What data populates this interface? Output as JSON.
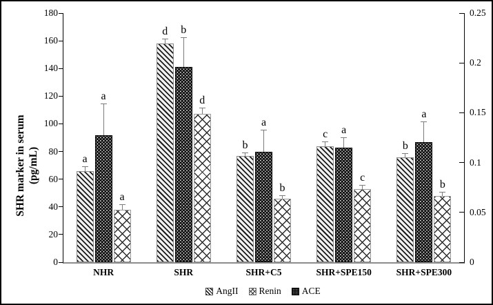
{
  "figure": {
    "background": "#ffffff",
    "border_color": "#000000",
    "axis_color": "#000000",
    "baseline_color": "#8c8c8c",
    "error_bar_color": "#7a7a7a"
  },
  "y_axis_left": {
    "title_line1": "SHR marker in serum",
    "title_line2": "(pg/mL)",
    "ticks": [
      "180",
      "160",
      "140",
      "120",
      "100",
      "80",
      "60",
      "40",
      "20",
      "0"
    ],
    "min": 0,
    "max": 180
  },
  "y_axis_right": {
    "ticks": [
      "0.25",
      "0.2",
      "0.15",
      "0.1",
      "0.05",
      "0"
    ],
    "min": 0,
    "max": 0.25
  },
  "legend": {
    "items": [
      {
        "label": "AngII",
        "pattern": "diagonal-stripes",
        "marker_class": "lm-angii"
      },
      {
        "label": "Renin",
        "pattern": "crosshatch",
        "marker_class": "lm-renin"
      },
      {
        "label": "ACE",
        "pattern": "dotted-black",
        "marker_class": "lm-ace"
      }
    ]
  },
  "chart_data": {
    "type": "bar",
    "title": "",
    "xlabel": "",
    "ylabel": "SHR marker in serum (pg/mL)",
    "ylim": [
      0,
      180
    ],
    "y2lim": [
      0,
      0.25
    ],
    "grid": false,
    "legend_position": "bottom-center",
    "categories": [
      "NHR",
      "SHR",
      "SHR+C5",
      "SHR+SPE150",
      "SHR+SPE300"
    ],
    "bar_order": [
      "AngII",
      "ACE",
      "Renin"
    ],
    "legend_order": [
      "AngII",
      "Renin",
      "ACE"
    ],
    "series": [
      {
        "name": "AngII",
        "pattern": "diagonal-stripes",
        "pattern_class": "pat-angii",
        "values": [
          66,
          158,
          77,
          84,
          76
        ],
        "errors": [
          3,
          3,
          2,
          3,
          2.5
        ],
        "sig_letters": [
          "a",
          "d",
          "b",
          "c",
          "b"
        ]
      },
      {
        "name": "ACE",
        "pattern": "dotted-black",
        "pattern_class": "pat-ace",
        "values": [
          92,
          141,
          80,
          83,
          87
        ],
        "errors": [
          22,
          21,
          15,
          7,
          14
        ],
        "sig_letters": [
          "a",
          "b",
          "a",
          "a",
          "a"
        ]
      },
      {
        "name": "Renin",
        "pattern": "crosshatch",
        "pattern_class": "pat-renin",
        "values": [
          38,
          107,
          46,
          53,
          48
        ],
        "errors": [
          3.5,
          4,
          2,
          2.5,
          2.5
        ],
        "sig_letters": [
          "a",
          "d",
          "b",
          "c",
          "b"
        ]
      }
    ]
  }
}
